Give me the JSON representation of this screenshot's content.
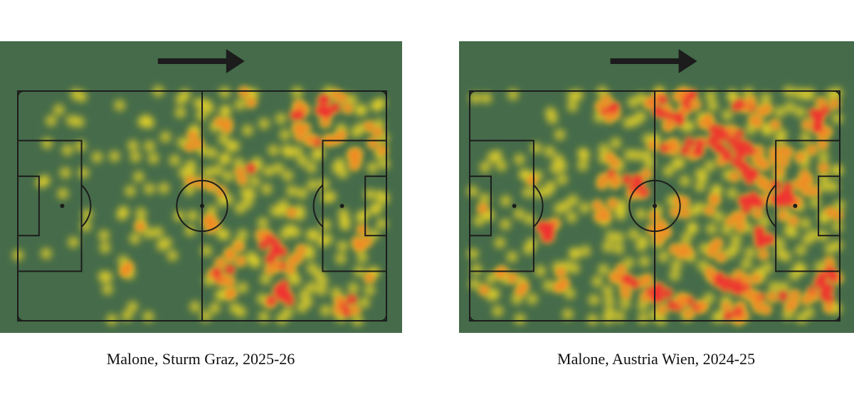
{
  "panels": [
    {
      "caption": "Malone, Sturm Graz, 2025-26"
    },
    {
      "caption": "Malone, Austria Wien, 2024-25"
    }
  ]
}
